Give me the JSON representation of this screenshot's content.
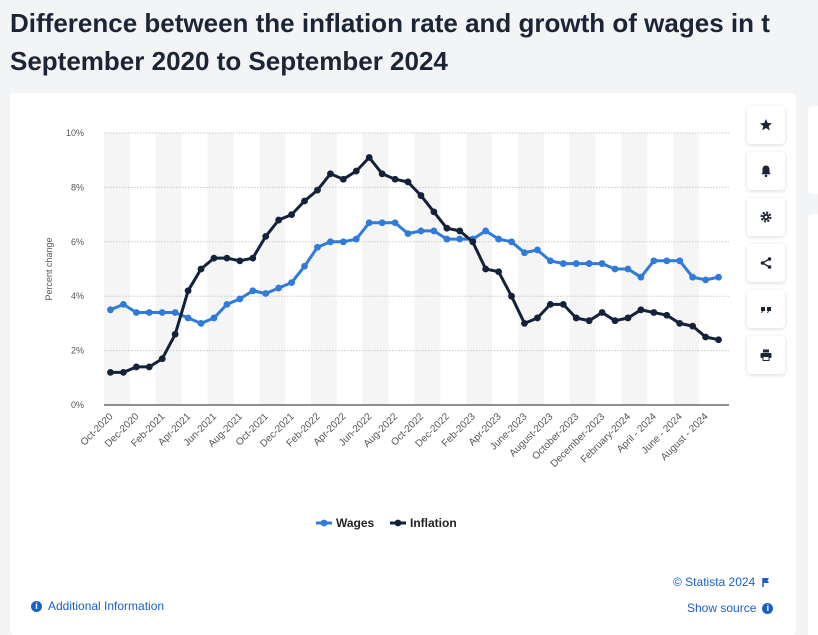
{
  "page": {
    "title_line1": "Difference between the inflation rate and growth of wages in t",
    "title_line2": "September 2020 to September 2024"
  },
  "toolbar": {
    "icons": [
      "star-icon",
      "bell-icon",
      "gear-icon",
      "share-icon",
      "quote-icon",
      "print-icon"
    ]
  },
  "footer": {
    "copyright": "© Statista 2024",
    "additional_info": "Additional Information",
    "show_source": "Show source"
  },
  "chart_data": {
    "type": "line",
    "ylabel": "Percent change",
    "ylim": [
      0,
      10
    ],
    "yticks": [
      "0%",
      "2%",
      "4%",
      "6%",
      "8%",
      "10%"
    ],
    "xtick_labels": [
      "Oct-2020",
      "Dec-2020",
      "Feb-2021",
      "Apr-2021",
      "Jun-2021",
      "Aug-2021",
      "Oct-2021",
      "Dec-2021",
      "Feb-2022",
      "Apr-2022",
      "Jun-2022",
      "Aug-2022",
      "Oct-2022",
      "Dec-2022",
      "Feb-2023",
      "Apr-2023",
      "June-2023",
      "August-2023",
      "October-2023",
      "December-2023",
      "February-2024",
      "April - 2024",
      "June - 2024",
      "August - 2024"
    ],
    "grid": true,
    "legend": "bottom-center",
    "series": [
      {
        "name": "Wages",
        "color": "#2f7bd9",
        "values": [
          3.5,
          3.7,
          3.4,
          3.4,
          3.4,
          3.4,
          3.2,
          3.0,
          3.2,
          3.7,
          3.9,
          4.2,
          4.1,
          4.3,
          4.5,
          5.1,
          5.8,
          6.0,
          6.0,
          6.1,
          6.7,
          6.7,
          6.7,
          6.3,
          6.4,
          6.4,
          6.1,
          6.1,
          6.1,
          6.4,
          6.1,
          6.0,
          5.6,
          5.7,
          5.3,
          5.2,
          5.2,
          5.2,
          5.2,
          5.0,
          5.0,
          4.7,
          5.3,
          5.3,
          5.3,
          4.7,
          4.6,
          4.7
        ]
      },
      {
        "name": "Inflation",
        "color": "#14213a",
        "values": [
          1.2,
          1.2,
          1.4,
          1.4,
          1.7,
          2.6,
          4.2,
          5.0,
          5.4,
          5.4,
          5.3,
          5.4,
          6.2,
          6.8,
          7.0,
          7.5,
          7.9,
          8.5,
          8.3,
          8.6,
          9.1,
          8.5,
          8.3,
          8.2,
          7.7,
          7.1,
          6.5,
          6.4,
          6.0,
          5.0,
          4.9,
          4.0,
          3.0,
          3.2,
          3.7,
          3.7,
          3.2,
          3.1,
          3.4,
          3.1,
          3.2,
          3.5,
          3.4,
          3.3,
          3.0,
          2.9,
          2.5,
          2.4
        ]
      }
    ]
  }
}
